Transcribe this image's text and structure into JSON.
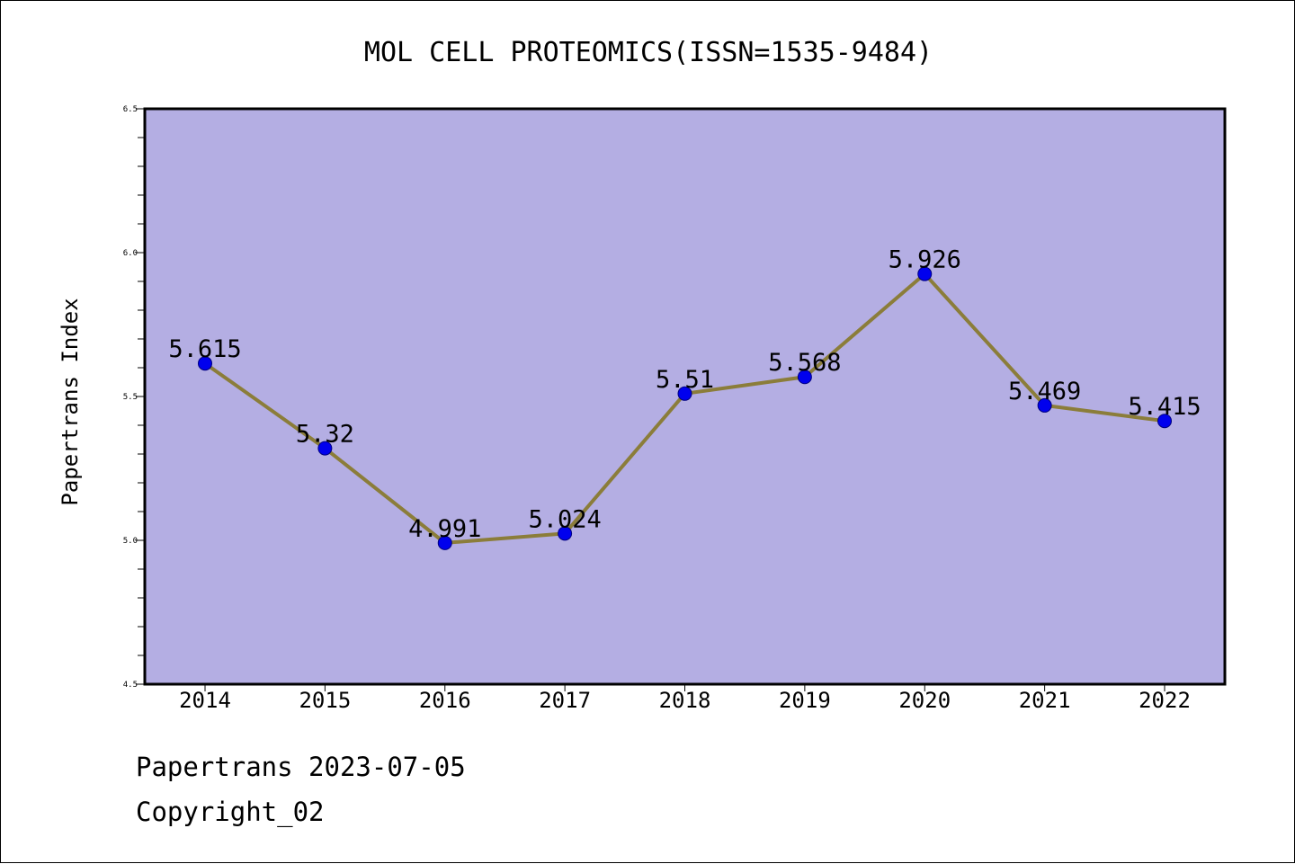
{
  "chart_data": {
    "type": "line",
    "title": "MOL CELL PROTEOMICS(ISSN=1535-9484)",
    "xlabel": "",
    "ylabel": "Papertrans Index",
    "categories": [
      "2014",
      "2015",
      "2016",
      "2017",
      "2018",
      "2019",
      "2020",
      "2021",
      "2022"
    ],
    "series": [
      {
        "values": [
          5.615,
          5.32,
          4.991,
          5.024,
          5.51,
          5.568,
          5.926,
          5.469,
          5.415
        ],
        "data_labels": [
          "5.615",
          "5.32",
          "4.991",
          "5.024",
          "5.51",
          "5.568",
          "5.926",
          "5.469",
          "5.415"
        ]
      }
    ],
    "ylim": [
      4.5,
      6.5
    ],
    "y_ticks": [
      "4.5",
      "5.0",
      "5.5",
      "6.0",
      "6.5"
    ],
    "grid": false,
    "colors": {
      "plot_background": "#b4aee3",
      "line": "#8b7d3a",
      "marker": "#0000ee",
      "axis": "#000000"
    }
  },
  "footer": {
    "line1": "Papertrans 2023-07-05",
    "line2": "Copyright_02"
  }
}
